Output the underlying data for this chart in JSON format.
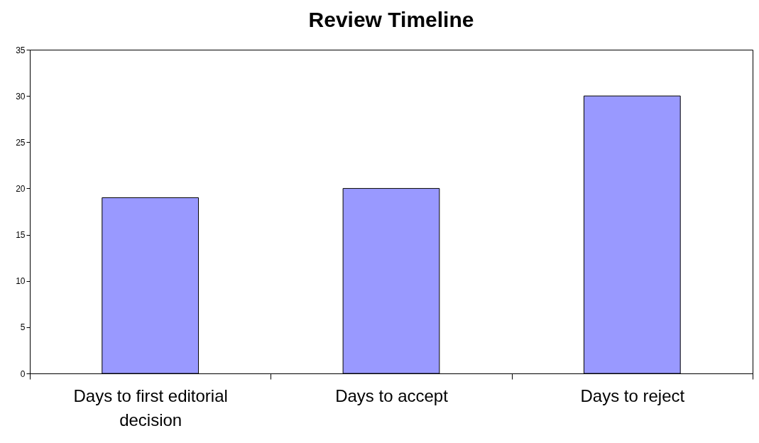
{
  "chart_data": {
    "type": "bar",
    "title": "Review Timeline",
    "categories": [
      "Days to first editorial decision",
      "Days to accept",
      "Days to reject"
    ],
    "values": [
      19,
      20,
      30
    ],
    "color": "#9999ff",
    "ylim": [
      0,
      35
    ],
    "yticks": [
      0,
      5,
      10,
      15,
      20,
      25,
      30,
      35
    ],
    "grid": false,
    "legend": false
  }
}
